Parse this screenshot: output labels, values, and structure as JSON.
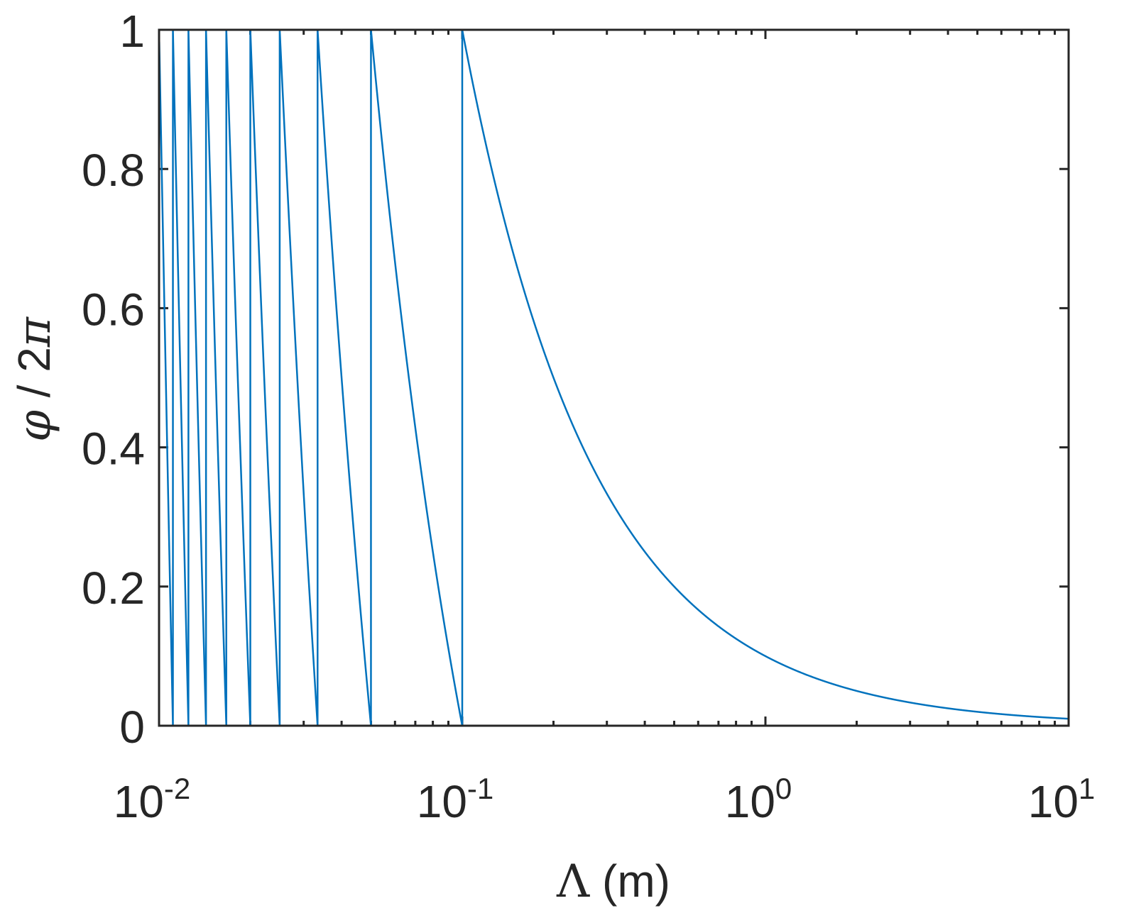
{
  "chart_data": {
    "type": "line",
    "xscale": "log",
    "xlim": [
      0.01,
      10
    ],
    "ylim": [
      0,
      1
    ],
    "xlabel": {
      "symbol": "Λ",
      "unit": " (m)"
    },
    "ylabel": {
      "symbol": "φ",
      "divider": " / 2",
      "pi": "π"
    },
    "xticks": [
      {
        "value": 0.01,
        "base": "10",
        "exp": "-2"
      },
      {
        "value": 0.1,
        "base": "10",
        "exp": "-1"
      },
      {
        "value": 1,
        "base": "10",
        "exp": "0"
      },
      {
        "value": 10,
        "base": "10",
        "exp": "1"
      }
    ],
    "yticks": [
      {
        "value": 0,
        "label": "0"
      },
      {
        "value": 0.2,
        "label": "0.2"
      },
      {
        "value": 0.4,
        "label": "0.4"
      },
      {
        "value": 0.6,
        "label": "0.6"
      },
      {
        "value": 0.8,
        "label": "0.8"
      },
      {
        "value": 1,
        "label": "1"
      }
    ],
    "grid": false,
    "series": [
      {
        "function": "y = frac(0.1 / x)",
        "x_range": [
          0.01,
          10
        ],
        "color": "#0072BD"
      }
    ]
  }
}
